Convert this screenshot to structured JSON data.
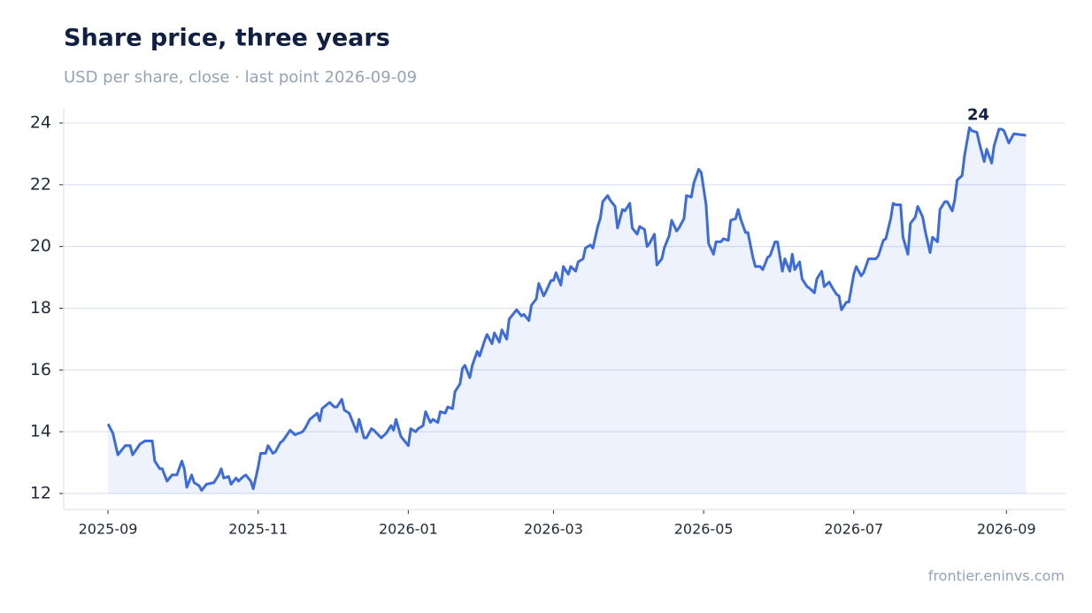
{
  "chart_data": {
    "type": "line",
    "title": "Share price, three years",
    "subtitle": "USD per share, close · last point 2026-09-09",
    "source": "frontier.eninvs.com",
    "color": "#3b6be0",
    "area": true,
    "grid": true,
    "xlim": [
      "2025-08-14",
      "2026-09-25"
    ],
    "ylim": [
      11.48,
      24.46
    ],
    "yticks": [
      12,
      14,
      16,
      18,
      20,
      22,
      24
    ],
    "xticks": [
      {
        "value": "2025-09-01",
        "label": "2025-09"
      },
      {
        "value": "2025-11-01",
        "label": "2025-11"
      },
      {
        "value": "2026-01-01",
        "label": "2026-01"
      },
      {
        "value": "2026-03-01",
        "label": "2026-03"
      },
      {
        "value": "2026-05-01",
        "label": "2026-05"
      },
      {
        "value": "2026-07-01",
        "label": "2026-07"
      },
      {
        "value": "2026-09-01",
        "label": "2026-09"
      }
    ],
    "annotation": {
      "x": "2026-08-17",
      "y": 23.85,
      "label": "24"
    },
    "x": [
      "2025-09-01",
      "2025-09-03",
      "2025-09-05",
      "2025-09-08",
      "2025-09-10",
      "2025-09-11",
      "2025-09-14",
      "2025-09-16",
      "2025-09-19",
      "2025-09-20",
      "2025-09-22",
      "2025-09-23",
      "2025-09-25",
      "2025-09-27",
      "2025-09-29",
      "2025-10-01",
      "2025-10-02",
      "2025-10-03",
      "2025-10-05",
      "2025-10-06",
      "2025-10-08",
      "2025-10-09",
      "2025-10-11",
      "2025-10-14",
      "2025-10-16",
      "2025-10-17",
      "2025-10-18",
      "2025-10-20",
      "2025-10-21",
      "2025-10-23",
      "2025-10-24",
      "2025-10-26",
      "2025-10-27",
      "2025-10-29",
      "2025-10-30",
      "2025-11-01",
      "2025-11-02",
      "2025-11-04",
      "2025-11-05",
      "2025-11-07",
      "2025-11-08",
      "2025-11-10",
      "2025-11-11",
      "2025-11-14",
      "2025-11-16",
      "2025-11-19",
      "2025-11-20",
      "2025-11-22",
      "2025-11-25",
      "2025-11-26",
      "2025-11-27",
      "2025-11-30",
      "2025-12-02",
      "2025-12-03",
      "2025-12-05",
      "2025-12-06",
      "2025-12-08",
      "2025-12-09",
      "2025-12-11",
      "2025-12-12",
      "2025-12-14",
      "2025-12-15",
      "2025-12-17",
      "2025-12-18",
      "2025-12-21",
      "2025-12-23",
      "2025-12-25",
      "2025-12-26",
      "2025-12-27",
      "2025-12-29",
      "2026-01-01",
      "2026-01-02",
      "2026-01-04",
      "2026-01-05",
      "2026-01-07",
      "2026-01-08",
      "2026-01-10",
      "2026-01-11",
      "2026-01-13",
      "2026-01-14",
      "2026-01-16",
      "2026-01-17",
      "2026-01-19",
      "2026-01-20",
      "2026-01-22",
      "2026-01-23",
      "2026-01-24",
      "2026-01-26",
      "2026-01-27",
      "2026-01-29",
      "2026-01-30",
      "2026-02-01",
      "2026-02-02",
      "2026-02-04",
      "2026-02-05",
      "2026-02-07",
      "2026-02-08",
      "2026-02-10",
      "2026-02-11",
      "2026-02-13",
      "2026-02-14",
      "2026-02-16",
      "2026-02-17",
      "2026-02-19",
      "2026-02-20",
      "2026-02-22",
      "2026-02-23",
      "2026-02-25",
      "2026-02-26",
      "2026-02-28",
      "2026-03-01",
      "2026-03-02",
      "2026-03-04",
      "2026-03-05",
      "2026-03-07",
      "2026-03-08",
      "2026-03-10",
      "2026-03-11",
      "2026-03-13",
      "2026-03-14",
      "2026-03-16",
      "2026-03-17",
      "2026-03-19",
      "2026-03-20",
      "2026-03-21",
      "2026-03-23",
      "2026-03-24",
      "2026-03-26",
      "2026-03-27",
      "2026-03-29",
      "2026-03-30",
      "2026-04-01",
      "2026-04-02",
      "2026-04-04",
      "2026-04-05",
      "2026-04-07",
      "2026-04-08",
      "2026-04-09",
      "2026-04-11",
      "2026-04-12",
      "2026-04-14",
      "2026-04-15",
      "2026-04-17",
      "2026-04-18",
      "2026-04-20",
      "2026-04-21",
      "2026-04-23",
      "2026-04-24",
      "2026-04-26",
      "2026-04-27",
      "2026-04-29",
      "2026-04-30",
      "2026-05-02",
      "2026-05-03",
      "2026-05-05",
      "2026-05-06",
      "2026-05-08",
      "2026-05-09",
      "2026-05-11",
      "2026-05-12",
      "2026-05-14",
      "2026-05-15",
      "2026-05-16",
      "2026-05-18",
      "2026-05-19",
      "2026-05-21",
      "2026-05-22",
      "2026-05-24",
      "2026-05-25",
      "2026-05-27",
      "2026-05-28",
      "2026-05-30",
      "2026-05-31",
      "2026-06-02",
      "2026-06-03",
      "2026-06-05",
      "2026-06-06",
      "2026-06-07",
      "2026-06-09",
      "2026-06-10",
      "2026-06-12",
      "2026-06-13",
      "2026-06-15",
      "2026-06-16",
      "2026-06-18",
      "2026-06-19",
      "2026-06-21",
      "2026-06-22",
      "2026-06-24",
      "2026-06-25",
      "2026-06-26",
      "2026-06-28",
      "2026-06-29",
      "2026-07-01",
      "2026-07-02",
      "2026-07-04",
      "2026-07-05",
      "2026-07-07",
      "2026-07-08",
      "2026-07-10",
      "2026-07-11",
      "2026-07-13",
      "2026-07-14",
      "2026-07-16",
      "2026-07-17",
      "2026-07-18",
      "2026-07-20",
      "2026-07-21",
      "2026-07-23",
      "2026-07-24",
      "2026-07-26",
      "2026-07-27",
      "2026-07-29",
      "2026-07-30",
      "2026-08-01",
      "2026-08-02",
      "2026-08-04",
      "2026-08-05",
      "2026-08-07",
      "2026-08-08",
      "2026-08-10",
      "2026-08-11",
      "2026-08-12",
      "2026-08-14",
      "2026-08-15",
      "2026-08-17",
      "2026-08-18",
      "2026-08-20",
      "2026-08-21",
      "2026-08-23",
      "2026-08-24",
      "2026-08-26",
      "2026-08-27",
      "2026-08-29",
      "2026-08-30",
      "2026-08-31",
      "2026-09-02",
      "2026-09-04",
      "2026-09-09"
    ],
    "values": [
      14.25,
      13.95,
      13.25,
      13.55,
      13.55,
      13.25,
      13.6,
      13.7,
      13.7,
      13.05,
      12.8,
      12.8,
      12.4,
      12.6,
      12.6,
      13.05,
      12.8,
      12.2,
      12.6,
      12.35,
      12.25,
      12.1,
      12.3,
      12.35,
      12.6,
      12.8,
      12.5,
      12.55,
      12.3,
      12.5,
      12.4,
      12.55,
      12.6,
      12.4,
      12.15,
      12.85,
      13.3,
      13.3,
      13.55,
      13.3,
      13.35,
      13.65,
      13.7,
      14.05,
      13.9,
      14.0,
      14.1,
      14.4,
      14.6,
      14.35,
      14.75,
      14.95,
      14.8,
      14.8,
      15.05,
      14.7,
      14.6,
      14.4,
      14.0,
      14.4,
      13.8,
      13.8,
      14.1,
      14.05,
      13.8,
      13.95,
      14.2,
      14.05,
      14.4,
      13.85,
      13.55,
      14.1,
      14.0,
      14.1,
      14.2,
      14.65,
      14.3,
      14.4,
      14.3,
      14.65,
      14.6,
      14.8,
      14.75,
      15.3,
      15.55,
      16.05,
      16.15,
      15.75,
      16.15,
      16.6,
      16.45,
      16.95,
      17.15,
      16.85,
      17.2,
      16.9,
      17.3,
      17.0,
      17.65,
      17.85,
      17.95,
      17.75,
      17.8,
      17.6,
      18.1,
      18.3,
      18.8,
      18.4,
      18.55,
      18.9,
      18.9,
      19.15,
      18.75,
      19.35,
      19.1,
      19.35,
      19.2,
      19.5,
      19.6,
      19.95,
      20.05,
      19.95,
      20.65,
      20.9,
      21.45,
      21.65,
      21.5,
      21.3,
      20.6,
      21.2,
      21.15,
      21.4,
      20.6,
      20.4,
      20.65,
      20.55,
      20.0,
      20.1,
      20.4,
      19.4,
      19.6,
      19.95,
      20.35,
      20.85,
      20.5,
      20.6,
      20.9,
      21.65,
      21.6,
      22.05,
      22.5,
      22.4,
      21.35,
      20.1,
      19.75,
      20.15,
      20.15,
      20.25,
      20.2,
      20.85,
      20.9,
      21.2,
      20.9,
      20.45,
      20.45,
      19.65,
      19.35,
      19.35,
      19.25,
      19.65,
      19.7,
      20.15,
      20.15,
      19.2,
      19.6,
      19.2,
      19.75,
      19.25,
      19.5,
      18.95,
      18.7,
      18.65,
      18.5,
      18.95,
      19.2,
      18.7,
      18.85,
      18.7,
      18.45,
      18.4,
      17.95,
      18.2,
      18.2,
      19.1,
      19.35,
      19.05,
      19.15,
      19.6,
      19.6,
      19.6,
      19.7,
      20.2,
      20.25,
      20.9,
      21.4,
      21.35,
      21.35,
      20.3,
      19.75,
      20.75,
      20.95,
      21.3,
      20.95,
      20.5,
      19.8,
      20.3,
      20.15,
      21.2,
      21.45,
      21.45,
      21.15,
      21.5,
      22.15,
      22.3,
      22.95,
      23.85,
      23.75,
      23.7,
      23.35,
      22.75,
      23.15,
      22.7,
      23.25,
      23.8,
      23.8,
      23.75,
      23.35,
      23.65,
      23.6
    ]
  }
}
